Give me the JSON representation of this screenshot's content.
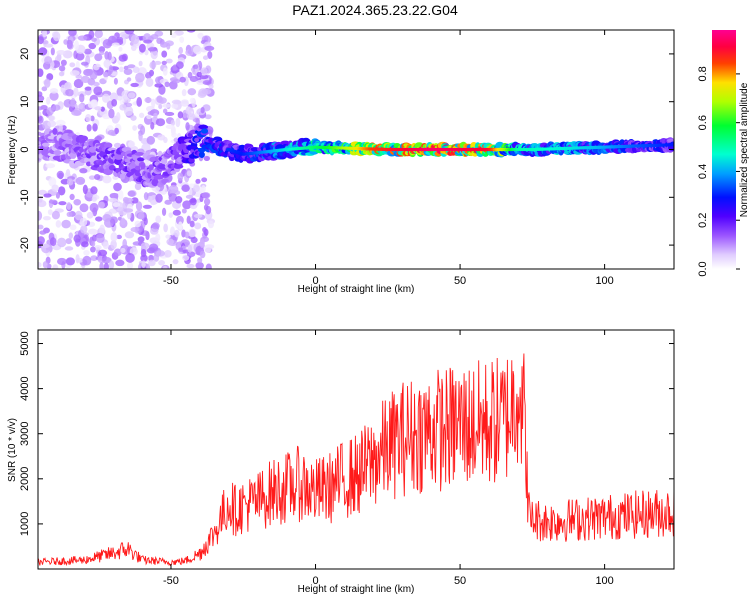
{
  "title": "PAZ1.2024.365.23.22.G04",
  "chart_data": [
    {
      "type": "heatmap",
      "xlabel": "Height of straight line (km)",
      "ylabel": "Frequency (Hz)",
      "xlim": [
        -96,
        124
      ],
      "ylim": [
        -25,
        25
      ],
      "x_ticks": [
        -50,
        0,
        50,
        100
      ],
      "y_ticks": [
        -20,
        -10,
        0,
        10,
        20
      ],
      "colorbar": {
        "label": "Normalized spectral amplitude",
        "range": [
          0,
          0.98
        ],
        "ticks": [
          0.0,
          0.2,
          0.4,
          0.6,
          0.8
        ],
        "colormap": [
          "#ffffff",
          "#e8d5ff",
          "#b07aff",
          "#7a00ff",
          "#0000ff",
          "#00bfff",
          "#00ffcc",
          "#00ff00",
          "#ffff00",
          "#ff0000",
          "#ff00aa"
        ]
      },
      "description_points": {
        "center_frequency_by_height": [
          [
            -90,
            1
          ],
          [
            -70,
            -2
          ],
          [
            -55,
            -5
          ],
          [
            -40,
            2
          ],
          [
            -25,
            -1
          ],
          [
            -10,
            0
          ],
          [
            0,
            0.5
          ],
          [
            25,
            0
          ],
          [
            50,
            0
          ],
          [
            75,
            0
          ],
          [
            100,
            0.5
          ],
          [
            124,
            1
          ]
        ],
        "peak_amplitude_by_height": [
          [
            -90,
            0.15
          ],
          [
            -70,
            0.2
          ],
          [
            -50,
            0.18
          ],
          [
            -38,
            0.35
          ],
          [
            -25,
            0.3
          ],
          [
            -10,
            0.45
          ],
          [
            5,
            0.6
          ],
          [
            20,
            0.85
          ],
          [
            40,
            0.95
          ],
          [
            60,
            0.9
          ],
          [
            70,
            0.5
          ],
          [
            90,
            0.45
          ],
          [
            110,
            0.35
          ],
          [
            124,
            0.3
          ]
        ]
      },
      "grid": false
    },
    {
      "type": "line",
      "xlabel": "Height of straight line (km)",
      "ylabel": "SNR (10 * v/v)",
      "xlim": [
        -96,
        124
      ],
      "ylim": [
        0,
        5300
      ],
      "x_ticks": [
        -50,
        0,
        50,
        100
      ],
      "y_ticks": [
        1000,
        2000,
        3000,
        4000,
        5000
      ],
      "color": "#ff0000",
      "series": [
        {
          "x": [
            -96,
            -80,
            -70,
            -65,
            -60,
            -50,
            -45,
            -40,
            -35,
            -32,
            -30,
            -28,
            -25,
            -20,
            -15,
            -10,
            -5,
            0,
            5,
            10,
            15,
            20,
            25,
            30,
            35,
            40,
            45,
            50,
            55,
            60,
            65,
            68,
            70,
            72,
            74,
            76,
            80,
            90,
            100,
            110,
            120,
            124
          ],
          "y": [
            150,
            200,
            350,
            450,
            200,
            150,
            180,
            350,
            800,
            1200,
            1500,
            1300,
            1400,
            1500,
            1700,
            1800,
            1900,
            1700,
            1800,
            2000,
            2100,
            2400,
            2700,
            2900,
            3000,
            3100,
            3100,
            3200,
            3200,
            3250,
            3300,
            3600,
            4200,
            3500,
            1100,
            1100,
            1050,
            1100,
            1150,
            1200,
            1250,
            1300
          ]
        }
      ],
      "grid": false
    }
  ]
}
